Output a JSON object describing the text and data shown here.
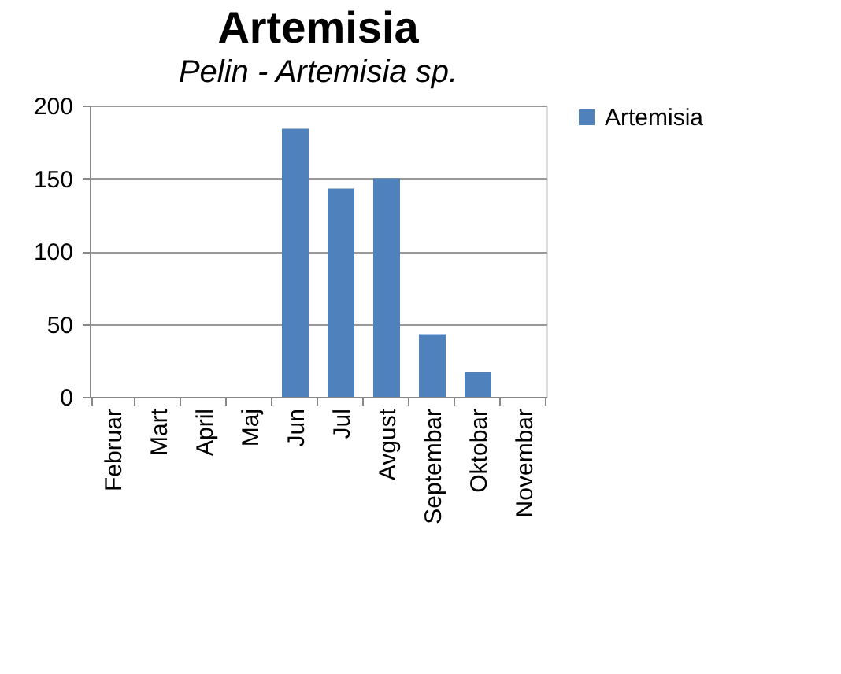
{
  "chart_data": {
    "type": "bar",
    "title": "Artemisia",
    "annotations": [
      "Pelin - Artemisia sp."
    ],
    "categories": [
      "Februar",
      "Mart",
      "April",
      "Maj",
      "Jun",
      "Jul",
      "Avgust",
      "Septembar",
      "Oktobar",
      "Novembar"
    ],
    "series": [
      {
        "name": "Artemisia",
        "color": "#4f81bd",
        "values": [
          0,
          0,
          0,
          0,
          184,
          143,
          150,
          43,
          17,
          0
        ]
      }
    ],
    "ylim": [
      0,
      200
    ],
    "yticks": [
      0,
      50,
      100,
      150,
      200
    ],
    "grid": "y",
    "legend": "right"
  }
}
